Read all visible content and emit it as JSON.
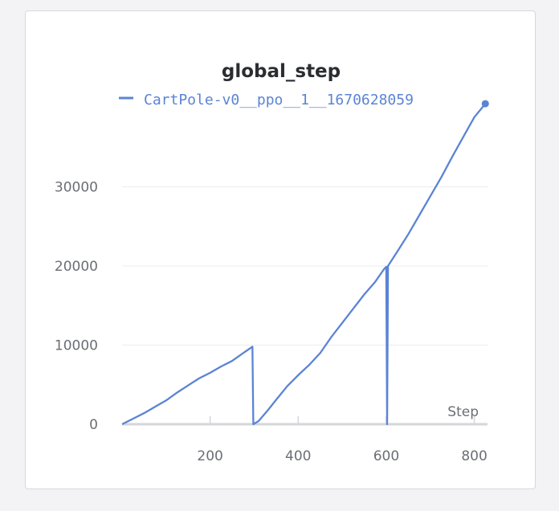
{
  "panel": {
    "title": "global_step"
  },
  "chart_data": {
    "type": "line",
    "title": "global_step",
    "xlabel": "Step",
    "ylabel": "",
    "xlim": [
      0,
      830
    ],
    "ylim": [
      0,
      40000
    ],
    "xticks": [
      200,
      400,
      600,
      800
    ],
    "yticks": [
      0,
      10000,
      20000,
      30000
    ],
    "xtick_labels": [
      "200",
      "400",
      "600",
      "800"
    ],
    "ytick_labels": [
      "0",
      "10000",
      "20000",
      "30000"
    ],
    "grid": true,
    "legend_position": "top",
    "color": "#5b84d4",
    "series": [
      {
        "name": "CartPole-v0__ppo__1__1670628059",
        "points": [
          [
            0,
            0
          ],
          [
            25,
            700
          ],
          [
            50,
            1400
          ],
          [
            75,
            2200
          ],
          [
            100,
            3000
          ],
          [
            125,
            4000
          ],
          [
            150,
            4900
          ],
          [
            175,
            5800
          ],
          [
            200,
            6500
          ],
          [
            225,
            7300
          ],
          [
            250,
            8000
          ],
          [
            275,
            9000
          ],
          [
            296,
            9800
          ],
          [
            298,
            0
          ],
          [
            310,
            400
          ],
          [
            330,
            1700
          ],
          [
            350,
            3100
          ],
          [
            375,
            4800
          ],
          [
            400,
            6200
          ],
          [
            425,
            7500
          ],
          [
            450,
            9000
          ],
          [
            475,
            11000
          ],
          [
            500,
            12800
          ],
          [
            525,
            14600
          ],
          [
            550,
            16400
          ],
          [
            575,
            18000
          ],
          [
            595,
            19600
          ],
          [
            600,
            19900
          ],
          [
            602,
            0
          ],
          [
            604,
            20000
          ],
          [
            625,
            21800
          ],
          [
            650,
            24000
          ],
          [
            675,
            26400
          ],
          [
            700,
            28800
          ],
          [
            725,
            31200
          ],
          [
            750,
            33800
          ],
          [
            775,
            36300
          ],
          [
            800,
            38800
          ],
          [
            825,
            40500
          ]
        ]
      }
    ]
  }
}
